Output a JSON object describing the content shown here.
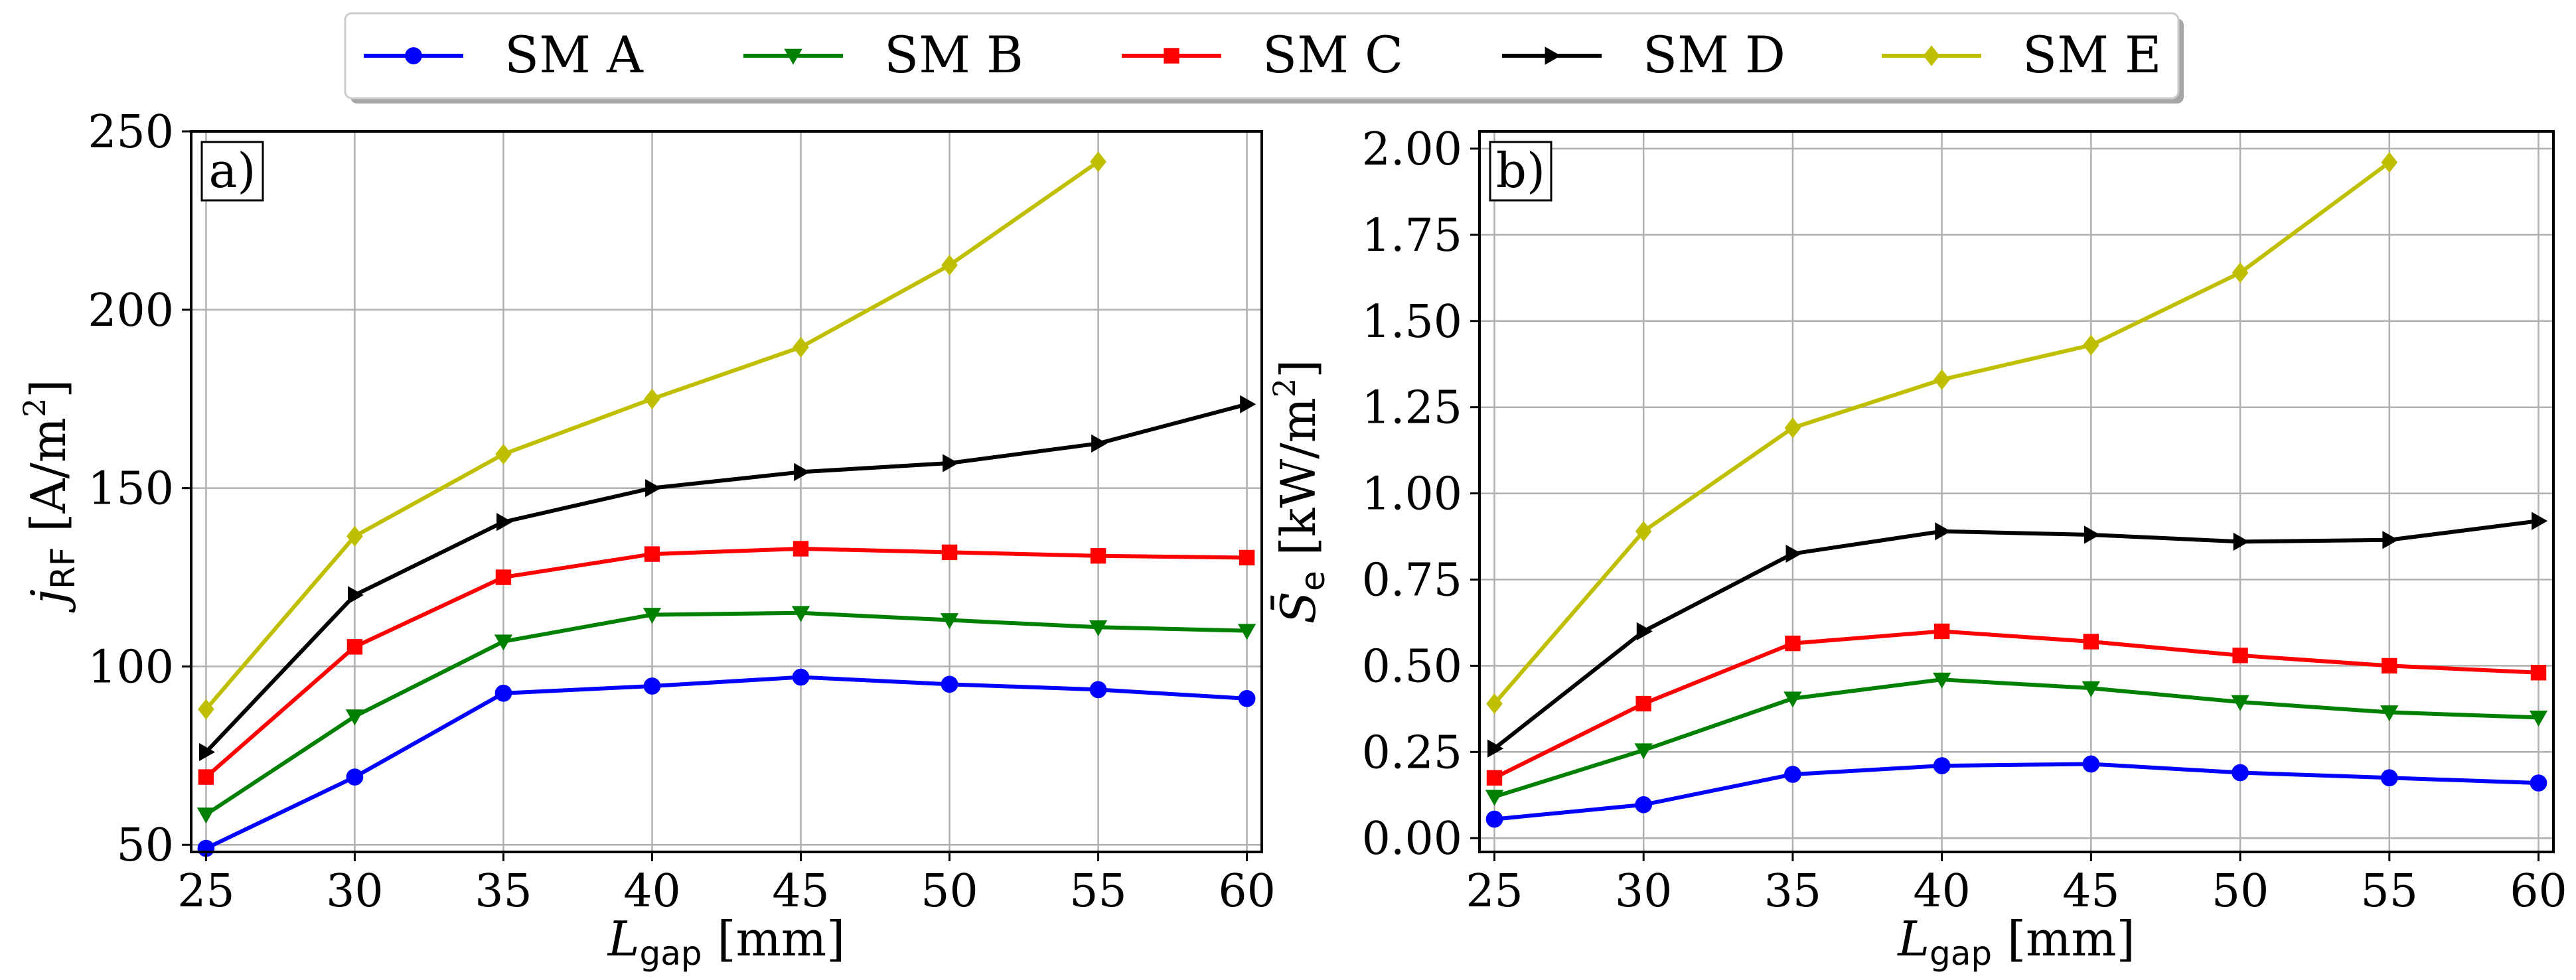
{
  "chart_data": [
    {
      "type": "line",
      "panel": "a)",
      "x": [
        25,
        30,
        35,
        40,
        45,
        50,
        55,
        60
      ],
      "xlabel": {
        "var": "L",
        "sub": "gap",
        "unit": "[mm]"
      },
      "ylabel": {
        "var": "j",
        "sub": "RF",
        "unit_pre": "[A/m",
        "unit_sup": "2",
        "unit_post": "]"
      },
      "xlim": [
        24.5,
        60.5
      ],
      "ylim": [
        48,
        250
      ],
      "xticks": [
        25,
        30,
        35,
        40,
        45,
        50,
        55,
        60
      ],
      "yticks": [
        50,
        100,
        150,
        200,
        250
      ],
      "grid": true,
      "series": [
        {
          "name": "SM A",
          "color": "#0000ff",
          "marker": "circle",
          "values": [
            49,
            69,
            92.5,
            94.5,
            97,
            95,
            93.5,
            91
          ]
        },
        {
          "name": "SM B",
          "color": "#008000",
          "marker": "triangle-down",
          "values": [
            58.5,
            86,
            107,
            114.5,
            115,
            113,
            111,
            110
          ]
        },
        {
          "name": "SM C",
          "color": "#ff0000",
          "marker": "square",
          "values": [
            69,
            105.5,
            125,
            131.5,
            133,
            132,
            131,
            130.5
          ]
        },
        {
          "name": "SM D",
          "color": "#000000",
          "marker": "triangle-right",
          "values": [
            76,
            120,
            140.5,
            150,
            154.5,
            157,
            162.5,
            173.5
          ]
        },
        {
          "name": "SM E",
          "color": "#bfbf00",
          "marker": "diamond",
          "values": [
            88,
            136.5,
            159.5,
            175,
            189.5,
            212.5,
            241.5,
            null
          ]
        }
      ]
    },
    {
      "type": "line",
      "panel": "b)",
      "x": [
        25,
        30,
        35,
        40,
        45,
        50,
        55,
        60
      ],
      "xlabel": {
        "var": "L",
        "sub": "gap",
        "unit": "[mm]"
      },
      "ylabel": {
        "var": "S̄",
        "sub": "e",
        "unit_pre": "[kW/m",
        "unit_sup": "2",
        "unit_post": "]"
      },
      "xlim": [
        24.5,
        60.5
      ],
      "ylim": [
        -0.04,
        2.05
      ],
      "xticks": [
        25,
        30,
        35,
        40,
        45,
        50,
        55,
        60
      ],
      "yticks": [
        0.0,
        0.25,
        0.5,
        0.75,
        1.0,
        1.25,
        1.5,
        1.75,
        2.0
      ],
      "yticklabels": [
        "0.00",
        "0.25",
        "0.50",
        "0.75",
        "1.00",
        "1.25",
        "1.50",
        "1.75",
        "2.00"
      ],
      "grid": true,
      "series": [
        {
          "name": "SM A",
          "color": "#0000ff",
          "marker": "circle",
          "values": [
            0.055,
            0.097,
            0.185,
            0.21,
            0.215,
            0.19,
            0.175,
            0.16
          ]
        },
        {
          "name": "SM B",
          "color": "#008000",
          "marker": "triangle-down",
          "values": [
            0.12,
            0.255,
            0.405,
            0.46,
            0.435,
            0.395,
            0.365,
            0.35
          ]
        },
        {
          "name": "SM C",
          "color": "#ff0000",
          "marker": "square",
          "values": [
            0.175,
            0.39,
            0.565,
            0.6,
            0.57,
            0.53,
            0.5,
            0.48
          ]
        },
        {
          "name": "SM D",
          "color": "#000000",
          "marker": "triangle-right",
          "values": [
            0.26,
            0.6,
            0.825,
            0.89,
            0.88,
            0.86,
            0.865,
            0.92
          ]
        },
        {
          "name": "SM E",
          "color": "#bfbf00",
          "marker": "diamond",
          "values": [
            0.39,
            0.89,
            1.19,
            1.33,
            1.43,
            1.64,
            1.96,
            null
          ]
        }
      ]
    }
  ],
  "legend": {
    "placement": "top-center",
    "entries": [
      {
        "label": "SM A",
        "color": "#0000ff",
        "marker": "circle"
      },
      {
        "label": "SM B",
        "color": "#008000",
        "marker": "triangle-down"
      },
      {
        "label": "SM C",
        "color": "#ff0000",
        "marker": "square"
      },
      {
        "label": "SM D",
        "color": "#000000",
        "marker": "triangle-right"
      },
      {
        "label": "SM E",
        "color": "#bfbf00",
        "marker": "diamond"
      }
    ]
  }
}
